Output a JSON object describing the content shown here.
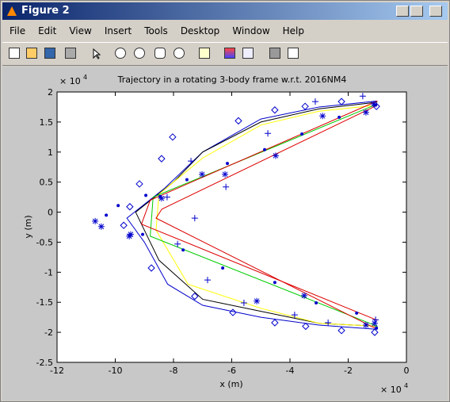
{
  "window": {
    "title": "Figure 2",
    "menu": [
      "File",
      "Edit",
      "View",
      "Insert",
      "Tools",
      "Desktop",
      "Window",
      "Help"
    ]
  },
  "chart_data": {
    "type": "line",
    "title": "Trajectory in a rotating 3-body frame w.r.t. 2016NM4",
    "x_label": "x (m)",
    "y_label": "y (m)",
    "x_exponent": {
      "base": "× 10",
      "power": "4"
    },
    "y_exponent": {
      "base": "× 10",
      "power": "4"
    },
    "xlim": [
      -12,
      0
    ],
    "ylim": [
      -2.5,
      2
    ],
    "xticks": [
      -12,
      -10,
      -8,
      -6,
      -4,
      -2,
      0
    ],
    "yticks": [
      -2.5,
      -2,
      -1.5,
      -1,
      -0.5,
      0,
      0.5,
      1,
      1.5,
      2
    ],
    "grid": false,
    "series": [
      {
        "color": "#0000cc",
        "marker": "line",
        "x": [
          -1,
          -3,
          -5,
          -7,
          -8.3,
          -9.6,
          -9,
          -8.2,
          -7,
          -5,
          -3,
          -1
        ],
        "values": [
          1.85,
          1.75,
          1.55,
          1.0,
          0.4,
          -0.1,
          -0.5,
          -1.2,
          -1.55,
          -1.75,
          -1.88,
          -1.95
        ]
      },
      {
        "color": "#000000",
        "marker": "line",
        "x": [
          -1,
          -3,
          -5,
          -7,
          -8,
          -9.3,
          -8.5,
          -7,
          -5,
          -3,
          -1
        ],
        "values": [
          1.83,
          1.72,
          1.5,
          1.0,
          0.5,
          0,
          -0.8,
          -1.45,
          -1.65,
          -1.85,
          -1.9
        ]
      },
      {
        "color": "#ffff00",
        "marker": "line",
        "x": [
          -1,
          -3,
          -5,
          -7,
          -8.5,
          -8.6,
          -7.5,
          -5,
          -3,
          -1
        ],
        "values": [
          1.78,
          1.68,
          1.45,
          0.9,
          0.3,
          -0.3,
          -1.2,
          -1.6,
          -1.85,
          -1.9
        ]
      },
      {
        "color": "#00cc00",
        "marker": "line",
        "x": [
          -1,
          -8.7,
          -8.8,
          -1
        ],
        "values": [
          1.8,
          0.25,
          -0.4,
          -1.9
        ]
      },
      {
        "color": "#dd0000",
        "marker": "line",
        "x": [
          -1,
          -8.8,
          -9.1,
          -1
        ],
        "values": [
          1.85,
          0.2,
          -0.2,
          -1.8
        ]
      },
      {
        "color": "#dd0000",
        "marker": "line",
        "x": [
          -1,
          -8.4,
          -8.6,
          -1
        ],
        "values": [
          1.78,
          0.05,
          -0.1,
          -1.95
        ]
      },
      {
        "color": "#0000cc",
        "marker": "diamond",
        "x": [
          -8.03,
          -8.41,
          -9.17,
          -9.5,
          -9.71,
          -8.76,
          -7.27,
          -5.96,
          -4.52,
          -3.46,
          -2.23,
          -1.09,
          -5.77,
          -4.52,
          -3.48,
          -2.23,
          -1.03
        ],
        "values": [
          1.25,
          0.89,
          0.47,
          0.09,
          -0.22,
          -0.93,
          -1.4,
          -1.67,
          -1.84,
          -1.9,
          -1.97,
          -2.0,
          1.52,
          1.7,
          1.76,
          1.84,
          1.76
        ]
      },
      {
        "color": "#0000cc",
        "marker": "dot",
        "x": [
          -10.31,
          -9.9,
          -8.95,
          -8.46,
          -7.54,
          -6.15,
          -4.87,
          -3.59,
          -2.31,
          -1.06,
          -9.06,
          -7.67,
          -6.31,
          -4.52,
          -3.1,
          -1.71,
          -1.03
        ],
        "values": [
          -0.05,
          0.11,
          0.28,
          0.26,
          0.54,
          0.81,
          1.04,
          1.3,
          1.58,
          1.78,
          -0.37,
          -0.63,
          -0.93,
          -1.17,
          -1.51,
          -1.68,
          -1.93
        ]
      },
      {
        "color": "#0000cc",
        "marker": "plus",
        "x": [
          -8.22,
          -7.4,
          -6.2,
          -4.76,
          -3.13,
          -1.5,
          -7.27,
          -7.86,
          -6.83,
          -5.58,
          -3.84,
          -2.69,
          -1.06
        ],
        "values": [
          0.25,
          0.85,
          0.42,
          1.31,
          1.84,
          1.93,
          -0.1,
          -0.53,
          -1.13,
          -1.51,
          -1.71,
          -1.84,
          -1.79
        ]
      },
      {
        "color": "#0000cc",
        "marker": "star",
        "x": [
          -10.69,
          -10.48,
          -9.47,
          -9.52,
          -8.41,
          -7.02,
          -6.23,
          -4.49,
          -2.88,
          -1.39,
          -1.12,
          -3.51,
          -5.14,
          -1.39,
          -1.09
        ],
        "values": [
          -0.15,
          -0.24,
          -0.37,
          -0.4,
          0.23,
          0.63,
          0.63,
          0.94,
          1.6,
          1.66,
          1.8,
          -1.39,
          -1.48,
          -1.88,
          -1.85
        ]
      }
    ]
  }
}
